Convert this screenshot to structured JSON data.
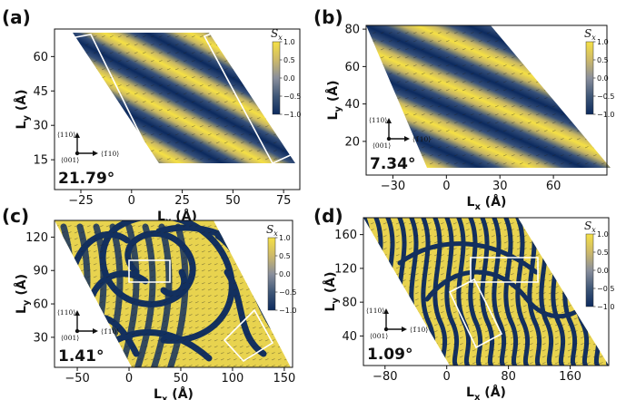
{
  "chart_data": [
    {
      "type": "heatmap",
      "panel_label": "(a)",
      "twist_angle": "21.79°",
      "xlabel": "L_x (Å)",
      "ylabel": "L_y (Å)",
      "xticks": [
        -25,
        0,
        25,
        50,
        75
      ],
      "yticks": [
        15,
        30,
        45,
        60
      ],
      "xlim": [
        -38,
        83
      ],
      "ylim": [
        2,
        72
      ],
      "colorbar": {
        "title": "S_x",
        "ticks": [
          1.0,
          0.5,
          0.0,
          -0.5,
          -1.0
        ],
        "range": [
          -1.0,
          1.0
        ]
      },
      "lattice_directions": [
        "⟨110⟩",
        "⟨001⟩",
        "⟨1̄10⟩"
      ],
      "texture": "diagonal stripes",
      "highlight_boxes": 2
    },
    {
      "type": "heatmap",
      "panel_label": "(b)",
      "twist_angle": "7.34°",
      "xlabel": "L_x (Å)",
      "ylabel": "L_y (Å)",
      "xticks": [
        -30,
        0,
        30,
        60
      ],
      "yticks": [
        20,
        40,
        60,
        80
      ],
      "xlim": [
        -45,
        90
      ],
      "ylim": [
        2,
        82
      ],
      "colorbar": {
        "title": "S_x",
        "ticks": [
          1.0,
          0.5,
          0.0,
          -0.5,
          -1.0
        ],
        "range": [
          -1.0,
          1.0
        ]
      },
      "lattice_directions": [
        "⟨110⟩",
        "⟨001⟩",
        "⟨1̄10⟩"
      ],
      "texture": "diagonal stripes",
      "highlight_boxes": 0
    },
    {
      "type": "heatmap",
      "panel_label": "(c)",
      "twist_angle": "1.41°",
      "xlabel": "L_x (Å)",
      "ylabel": "L_y (Å)",
      "xticks": [
        -50,
        0,
        50,
        100,
        150
      ],
      "yticks": [
        30,
        60,
        90,
        120
      ],
      "xlim": [
        -72,
        158
      ],
      "ylim": [
        3,
        135
      ],
      "colorbar": {
        "title": "S_x",
        "ticks": [
          1.0,
          0.5,
          0.0,
          -0.5,
          -1.0
        ],
        "range": [
          -1.0,
          1.0
        ]
      },
      "lattice_directions": [
        "⟨110⟩",
        "⟨001⟩",
        "⟨1̄10⟩"
      ],
      "texture": "labyrinth spirals",
      "highlight_boxes": 2
    },
    {
      "type": "heatmap",
      "panel_label": "(d)",
      "twist_angle": "1.09°",
      "xlabel": "L_x (Å)",
      "ylabel": "L_y (Å)",
      "xticks": [
        -80,
        0,
        80,
        160
      ],
      "yticks": [
        40,
        80,
        120,
        160
      ],
      "xlim": [
        -108,
        210
      ],
      "ylim": [
        5,
        180
      ],
      "colorbar": {
        "title": "S_x",
        "ticks": [
          1.0,
          0.5,
          0.0,
          -0.5,
          -1.0
        ],
        "range": [
          -1.0,
          1.0
        ]
      },
      "lattice_directions": [
        "⟨110⟩",
        "⟨001⟩",
        "⟨1̄10⟩"
      ],
      "texture": "labyrinth stripes",
      "highlight_boxes": 2
    }
  ],
  "colors": {
    "positive": "#f5e045",
    "zero": "#8a8f9c",
    "negative": "#0c2a5e",
    "box": "#ffffff"
  }
}
